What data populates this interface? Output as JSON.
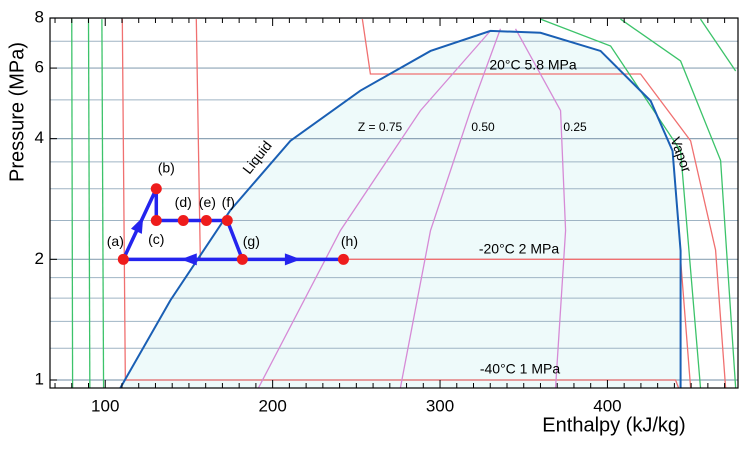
{
  "chart_data": {
    "type": "ph-diagram",
    "x_label": "Enthalpy (kJ/kg)",
    "y_label": "Pressure (MPa)",
    "xlim": [
      67,
      478
    ],
    "ylim": [
      0.955,
      8
    ],
    "y_log": true,
    "xticks": [
      100,
      200,
      300,
      400
    ],
    "xminor_ticks": [
      70,
      80,
      90,
      110,
      120,
      130,
      140,
      150,
      160,
      170,
      180,
      190,
      210,
      220,
      230,
      240,
      250,
      260,
      270,
      280,
      290,
      310,
      320,
      330,
      340,
      350,
      360,
      370,
      380,
      390,
      410,
      420,
      430,
      440,
      450,
      460,
      470
    ],
    "yticks": [
      1,
      2,
      4,
      6,
      8
    ],
    "y_grid_lines": [
      1.2,
      1.4,
      1.6,
      1.8,
      2.5,
      3,
      3.5,
      5,
      7
    ],
    "dome": {
      "color": "#1a5fb4",
      "fill": "#eefafa",
      "h": [
        109,
        138.9,
        174.7,
        210.6,
        252.4,
        294.3,
        330.1,
        360,
        395.9,
        425.8,
        438.9,
        443.7,
        443.7
      ],
      "p": [
        0.955,
        1.58,
        2.65,
        3.95,
        5.27,
        6.62,
        7.43,
        7.35,
        6.62,
        4.97,
        3.73,
        2.1,
        0.955
      ]
    },
    "curves": [
      {
        "color": "#f07070",
        "h": [
          253.6,
          258.4,
          419.8,
          449.7,
          464.6,
          470.6
        ],
        "p": [
          7.95,
          5.8,
          5.8,
          3.95,
          2.11,
          0.955
        ]
      },
      {
        "color": "#f07070",
        "h": [
          154.4,
          156.8,
          443.7,
          449.7
        ],
        "p": [
          7.95,
          2,
          2,
          0.955
        ]
      },
      {
        "color": "#f07070",
        "h": [
          110.2,
          112,
          440.7,
          442.5
        ],
        "p": [
          7.95,
          1,
          1,
          0.955
        ]
      },
      {
        "color": "#d68ad6",
        "h": [
          191.5,
          240.5,
          288.3,
          330.1
        ],
        "p": [
          0.955,
          2.36,
          4.7,
          7.43
        ]
      },
      {
        "color": "#d68ad6",
        "h": [
          276.3,
          294.3,
          318.2,
          336.1
        ],
        "p": [
          0.955,
          2.36,
          4.7,
          7.52
        ]
      },
      {
        "color": "#d68ad6",
        "h": [
          369,
          375,
          372,
          345.1
        ],
        "p": [
          0.955,
          2.36,
          4.7,
          7.52
        ]
      },
      {
        "color": "#3cc36a",
        "h": [
          80,
          80.5
        ],
        "p": [
          7.95,
          0.955
        ]
      },
      {
        "color": "#3cc36a",
        "h": [
          90,
          90.8
        ],
        "p": [
          7.95,
          0.955
        ]
      },
      {
        "color": "#3cc36a",
        "h": [
          98,
          99
        ],
        "p": [
          7.95,
          0.955
        ]
      },
      {
        "color": "#3cc36a",
        "h": [
          360,
          401.9,
          443.7,
          455.6
        ],
        "p": [
          7.95,
          6.81,
          3.73,
          0.955
        ]
      },
      {
        "color": "#3cc36a",
        "h": [
          407.8,
          443.7,
          467.6,
          476.6
        ],
        "p": [
          7.95,
          6.25,
          3.53,
          0.955
        ]
      },
      {
        "color": "#3cc36a",
        "h": [
          455.6,
          476.6
        ],
        "p": [
          7.95,
          5.9
        ]
      }
    ],
    "cycle": {
      "color": "#2424ee",
      "point_color": "#ee1c1c",
      "labels": [
        "(a)",
        "(b)",
        "(c)",
        "(d)",
        "(e)",
        "(f)",
        "(g)",
        "(h)"
      ],
      "h": [
        110.8,
        130.5,
        130.5,
        146.6,
        160.4,
        172.9,
        181.9,
        242.3
      ],
      "p": [
        2,
        3,
        2.5,
        2.5,
        2.5,
        2.5,
        2,
        2
      ]
    },
    "annotations": [
      "20°C  5.8 MPa",
      "-20°C  2 MPa",
      "-40°C  1 MPa",
      "Z = 0.75",
      "0.50",
      "0.25",
      "Liquid",
      "Vapor"
    ]
  }
}
